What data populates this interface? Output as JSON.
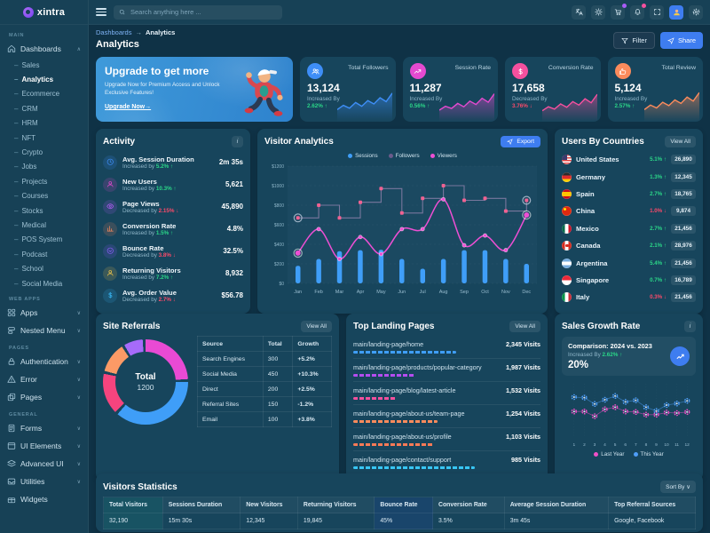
{
  "brand": {
    "name": "xintra"
  },
  "topbar": {
    "search_placeholder": "Search anything here ...",
    "icons": [
      {
        "name": "translate-icon"
      },
      {
        "name": "theme-icon"
      },
      {
        "name": "cart-icon",
        "badge_color": "#a85cf6"
      },
      {
        "name": "bell-icon",
        "badge_color": "#f5509e"
      },
      {
        "name": "fullscreen-icon"
      },
      {
        "name": "avatar",
        "type": "avatar"
      },
      {
        "name": "settings-icon"
      }
    ]
  },
  "page": {
    "breadcrumb": [
      "Dashboards",
      "Analytics"
    ],
    "breadcrumb_separator": "→",
    "title": "Analytics",
    "filter_label": "Filter",
    "share_label": "Share"
  },
  "sidebar": {
    "sections": [
      {
        "label": "MAIN",
        "items": [
          {
            "label": "Dashboards",
            "icon": "home",
            "expanded": true,
            "active": "Analytics",
            "children": [
              "Sales",
              "Analytics",
              "Ecommerce",
              "CRM",
              "HRM",
              "NFT",
              "Crypto",
              "Jobs",
              "Projects",
              "Courses",
              "Stocks",
              "Medical",
              "POS System",
              "Podcast",
              "School",
              "Social Media"
            ]
          }
        ]
      },
      {
        "label": "WEB APPS",
        "items": [
          {
            "label": "Apps",
            "icon": "apps",
            "chevron": true
          },
          {
            "label": "Nested Menu",
            "icon": "nested",
            "chevron": true
          }
        ]
      },
      {
        "label": "PAGES",
        "items": [
          {
            "label": "Authentication",
            "icon": "lock",
            "chevron": true
          },
          {
            "label": "Error",
            "icon": "warning",
            "chevron": true
          },
          {
            "label": "Pages",
            "icon": "pages",
            "chevron": true
          }
        ]
      },
      {
        "label": "GENERAL",
        "items": [
          {
            "label": "Forms",
            "icon": "forms",
            "chevron": true
          },
          {
            "label": "UI Elements",
            "icon": "ui",
            "chevron": true
          },
          {
            "label": "Advanced UI",
            "icon": "advanced",
            "chevron": true
          },
          {
            "label": "Utilities",
            "icon": "utilities",
            "chevron": true
          },
          {
            "label": "Widgets",
            "icon": "widgets",
            "chevron": false
          }
        ]
      }
    ]
  },
  "upgrade": {
    "title": "Upgrade to get more",
    "subtitle": "Upgrade Now for Premium Access and Unlock Exclusive Features!",
    "cta": "Upgrade Now→"
  },
  "stat_cards": [
    {
      "label": "Total Followers",
      "value": "13,124",
      "change_label": "Increased By",
      "change": "2.62%",
      "direction": "up",
      "icon": "followers",
      "color": "#3e8ef7",
      "spark": [
        30,
        45,
        35,
        55,
        42,
        62,
        50,
        72,
        58,
        88
      ]
    },
    {
      "label": "Session Rate",
      "value": "11,287",
      "change_label": "Increased By",
      "change": "0.56%",
      "direction": "up",
      "icon": "trend",
      "color": "#e54ad0",
      "spark": [
        28,
        42,
        34,
        52,
        40,
        60,
        48,
        70,
        56,
        86
      ]
    },
    {
      "label": "Conversion Rate",
      "value": "17,658",
      "change_label": "Decreased By",
      "change": "3.76%",
      "direction": "down",
      "icon": "dollar",
      "color": "#f5509e",
      "spark": [
        26,
        40,
        32,
        50,
        38,
        58,
        46,
        68,
        54,
        84
      ]
    },
    {
      "label": "Total Review",
      "value": "5,124",
      "change_label": "Increased By",
      "change": "2.57%",
      "direction": "up",
      "icon": "thumb",
      "color": "#fb8b5c",
      "spark": [
        30,
        46,
        36,
        56,
        44,
        64,
        52,
        74,
        60,
        90
      ]
    }
  ],
  "activity": {
    "title": "Activity",
    "items": [
      {
        "label": "Avg. Session Duration",
        "change_label": "Increased by",
        "change": "5.2%",
        "direction": "up",
        "value": "2m 35s",
        "icon": "clock",
        "color": "#3e8ef7"
      },
      {
        "label": "New Users",
        "change_label": "Increased by",
        "change": "10.3%",
        "direction": "up",
        "value": "5,621",
        "icon": "user",
        "color": "#e54ad0"
      },
      {
        "label": "Page Views",
        "change_label": "Decreased by",
        "change": "2.15%",
        "direction": "down",
        "value": "45,890",
        "icon": "eye",
        "color": "#b45cf6"
      },
      {
        "label": "Conversion Rate",
        "change_label": "Increased by",
        "change": "1.5%",
        "direction": "up",
        "value": "4.8%",
        "icon": "chart",
        "color": "#fb8b5c"
      },
      {
        "label": "Bounce Rate",
        "change_label": "Decreased by",
        "change": "3.8%",
        "direction": "down",
        "value": "32.5%",
        "icon": "arrow-down",
        "color": "#8b5cf6"
      },
      {
        "label": "Returning Visitors",
        "change_label": "Increased by",
        "change": "7.2%",
        "direction": "up",
        "value": "8,932",
        "icon": "user",
        "color": "#f7c948"
      },
      {
        "label": "Avg. Order Value",
        "change_label": "Decreased by",
        "change": "2.7%",
        "direction": "down",
        "value": "$56.78",
        "icon": "dollar",
        "color": "#38b6f4"
      }
    ]
  },
  "visitor_analytics": {
    "title": "Visitor Analytics",
    "export_label": "Export",
    "type": "mixed",
    "x": [
      "Jan",
      "Feb",
      "Mar",
      "Apr",
      "May",
      "Jun",
      "Jul",
      "Aug",
      "Sep",
      "Oct",
      "Nov",
      "Dec"
    ],
    "ylim": [
      0,
      1200
    ],
    "yticks": [
      "$0",
      "$200",
      "$400",
      "$600",
      "$800",
      "$1000",
      "$1200"
    ],
    "series": [
      {
        "name": "Sessions",
        "type": "bar",
        "color": "#3f9ef8",
        "values": [
          180,
          250,
          330,
          340,
          345,
          250,
          150,
          250,
          340,
          340,
          250,
          200
        ]
      },
      {
        "name": "Followers",
        "type": "step",
        "color": "#8a7fa8",
        "marker_color": "#f06292",
        "values": [
          670,
          800,
          670,
          830,
          970,
          720,
          870,
          1000,
          850,
          870,
          740,
          850
        ]
      },
      {
        "name": "Viewers",
        "type": "line",
        "color": "#ee4fd4",
        "values": [
          310,
          555,
          250,
          475,
          300,
          555,
          555,
          860,
          390,
          490,
          340,
          700
        ]
      }
    ]
  },
  "users_by_countries": {
    "title": "Users By Countries",
    "view_all_label": "View All",
    "rows": [
      {
        "name": "United States",
        "flag": "us",
        "change": "5.1%",
        "direction": "up",
        "users": "26,890"
      },
      {
        "name": "Germany",
        "flag": "de",
        "change": "1.3%",
        "direction": "up",
        "users": "12,345"
      },
      {
        "name": "Spain",
        "flag": "es",
        "change": "2.7%",
        "direction": "up",
        "users": "18,765"
      },
      {
        "name": "China",
        "flag": "cn",
        "change": "1.0%",
        "direction": "down",
        "users": "9,874"
      },
      {
        "name": "Mexico",
        "flag": "mx",
        "change": "2.7%",
        "direction": "up",
        "users": "21,456"
      },
      {
        "name": "Canada",
        "flag": "ca",
        "change": "2.1%",
        "direction": "up",
        "users": "28,976"
      },
      {
        "name": "Argentina",
        "flag": "ar",
        "change": "5.4%",
        "direction": "up",
        "users": "21,456"
      },
      {
        "name": "Singapore",
        "flag": "sg",
        "change": "0.7%",
        "direction": "up",
        "users": "16,789"
      },
      {
        "name": "Italy",
        "flag": "it",
        "change": "0.3%",
        "direction": "down",
        "users": "21,456"
      }
    ]
  },
  "site_referrals": {
    "title": "Site Referrals",
    "view_all_label": "View All",
    "donut": {
      "type": "pie",
      "center_label": "Total",
      "center_value": "1200",
      "segments": [
        {
          "source": "Search Engines",
          "value": 300,
          "color": "#e94ad4"
        },
        {
          "source": "Social Media",
          "value": 450,
          "color": "#3f9ef8"
        },
        {
          "source": "Direct",
          "value": 200,
          "color": "#f5447e"
        },
        {
          "source": "Referral Sites",
          "value": 150,
          "color": "#fb9a66"
        },
        {
          "source": "Email",
          "value": 100,
          "color": "#a66bfa"
        }
      ]
    },
    "table": {
      "headers": [
        "Source",
        "Total",
        "Growth"
      ],
      "rows": [
        [
          "Search Engines",
          "300",
          "+5.2%"
        ],
        [
          "Social Media",
          "450",
          "+10.3%"
        ],
        [
          "Direct",
          "200",
          "+2.5%"
        ],
        [
          "Referral Sites",
          "150",
          "-1.2%"
        ],
        [
          "Email",
          "100",
          "+3.8%"
        ]
      ]
    }
  },
  "top_landing_pages": {
    "title": "Top Landing Pages",
    "view_all_label": "View All",
    "rows": [
      {
        "path": "main/landing-page/home",
        "visits": "2,345 Visits",
        "bar_pct": 55,
        "bar_color": "#3f9ef8"
      },
      {
        "path": "main/landing-page/products/popular-category",
        "visits": "1,987 Visits",
        "bar_pct": 33,
        "bar_color": "#b44df0"
      },
      {
        "path": "main/landing-page/blog/latest-article",
        "visits": "1,532 Visits",
        "bar_pct": 23,
        "bar_color": "#f5509e"
      },
      {
        "path": "main/landing-page/about-us/team-page",
        "visits": "1,254 Visits",
        "bar_pct": 45,
        "bar_color": "#fb8b5c"
      },
      {
        "path": "main/landing-page/about-us/profile",
        "visits": "1,103 Visits",
        "bar_pct": 43,
        "bar_color": "#fb7a56"
      },
      {
        "path": "main/landing-page/contact/support",
        "visits": "985 Visits",
        "bar_pct": 65,
        "bar_color": "#38c6f4"
      }
    ]
  },
  "sales_growth": {
    "title": "Sales Growth Rate",
    "comparison": "Comparison: 2024 vs. 2023",
    "change_label": "Increased By",
    "change": "2.62%",
    "direction": "up",
    "rate": "20%",
    "chart": {
      "type": "scatter",
      "x": [
        "1",
        "2",
        "3",
        "4",
        "5",
        "6",
        "7",
        "8",
        "9",
        "10",
        "11",
        "12"
      ],
      "ylim": [
        0,
        100
      ],
      "series": [
        {
          "name": "Last Year",
          "color": "#f050c8",
          "values": [
            48,
            48,
            39,
            52,
            56,
            48,
            47,
            42,
            42,
            46,
            45,
            47
          ]
        },
        {
          "name": "This Year",
          "color": "#4f9ef8",
          "values": [
            75,
            74,
            62,
            70,
            77,
            66,
            69,
            56,
            49,
            60,
            63,
            68
          ]
        }
      ]
    }
  },
  "visitors_statistics": {
    "title": "Visitors Statistics",
    "sort_label": "Sort By",
    "headers": [
      "Total Visitors",
      "Sessions Duration",
      "New Visitors",
      "Returning Visitors",
      "Bounce Rate",
      "Conversion Rate",
      "Average Session Duration",
      "Top Referral Sources"
    ],
    "rows": [
      [
        "32,190",
        "15m 30s",
        "12,345",
        "19,845",
        "45%",
        "3.5%",
        "3m 45s",
        "Google, Facebook"
      ]
    ]
  }
}
